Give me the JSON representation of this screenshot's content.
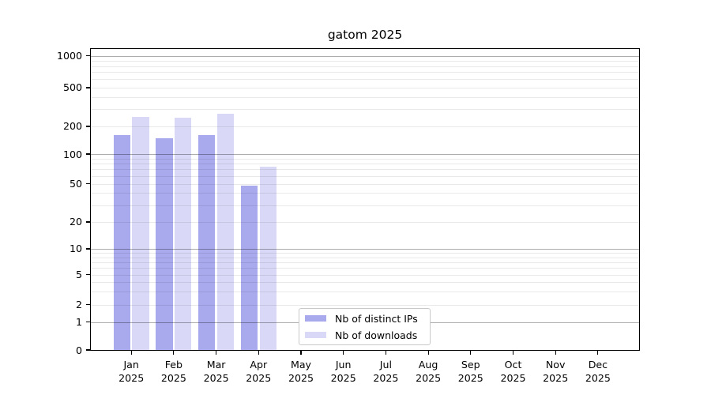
{
  "chart_data": {
    "type": "bar",
    "title": "gatom 2025",
    "scale": "symlog",
    "grid": true,
    "xlabel": "",
    "ylabel": "",
    "categories": [
      "Jan",
      "Feb",
      "Mar",
      "Apr",
      "May",
      "Jun",
      "Jul",
      "Aug",
      "Sep",
      "Oct",
      "Nov",
      "Dec"
    ],
    "year_label": "2025",
    "yticks": [
      1000,
      500,
      200,
      100,
      50,
      20,
      10,
      5,
      2,
      1,
      0
    ],
    "ylim": [
      0,
      1200
    ],
    "legend_position": "lower center",
    "series": [
      {
        "name": "Nb of distinct IPs",
        "color": "#a9a9ee",
        "values": [
          160,
          150,
          160,
          48,
          0,
          0,
          0,
          0,
          0,
          0,
          0,
          0
        ]
      },
      {
        "name": "Nb of downloads",
        "color": "#d9d9f7",
        "values": [
          250,
          245,
          270,
          75,
          0,
          0,
          0,
          0,
          0,
          0,
          0,
          0
        ]
      }
    ]
  }
}
